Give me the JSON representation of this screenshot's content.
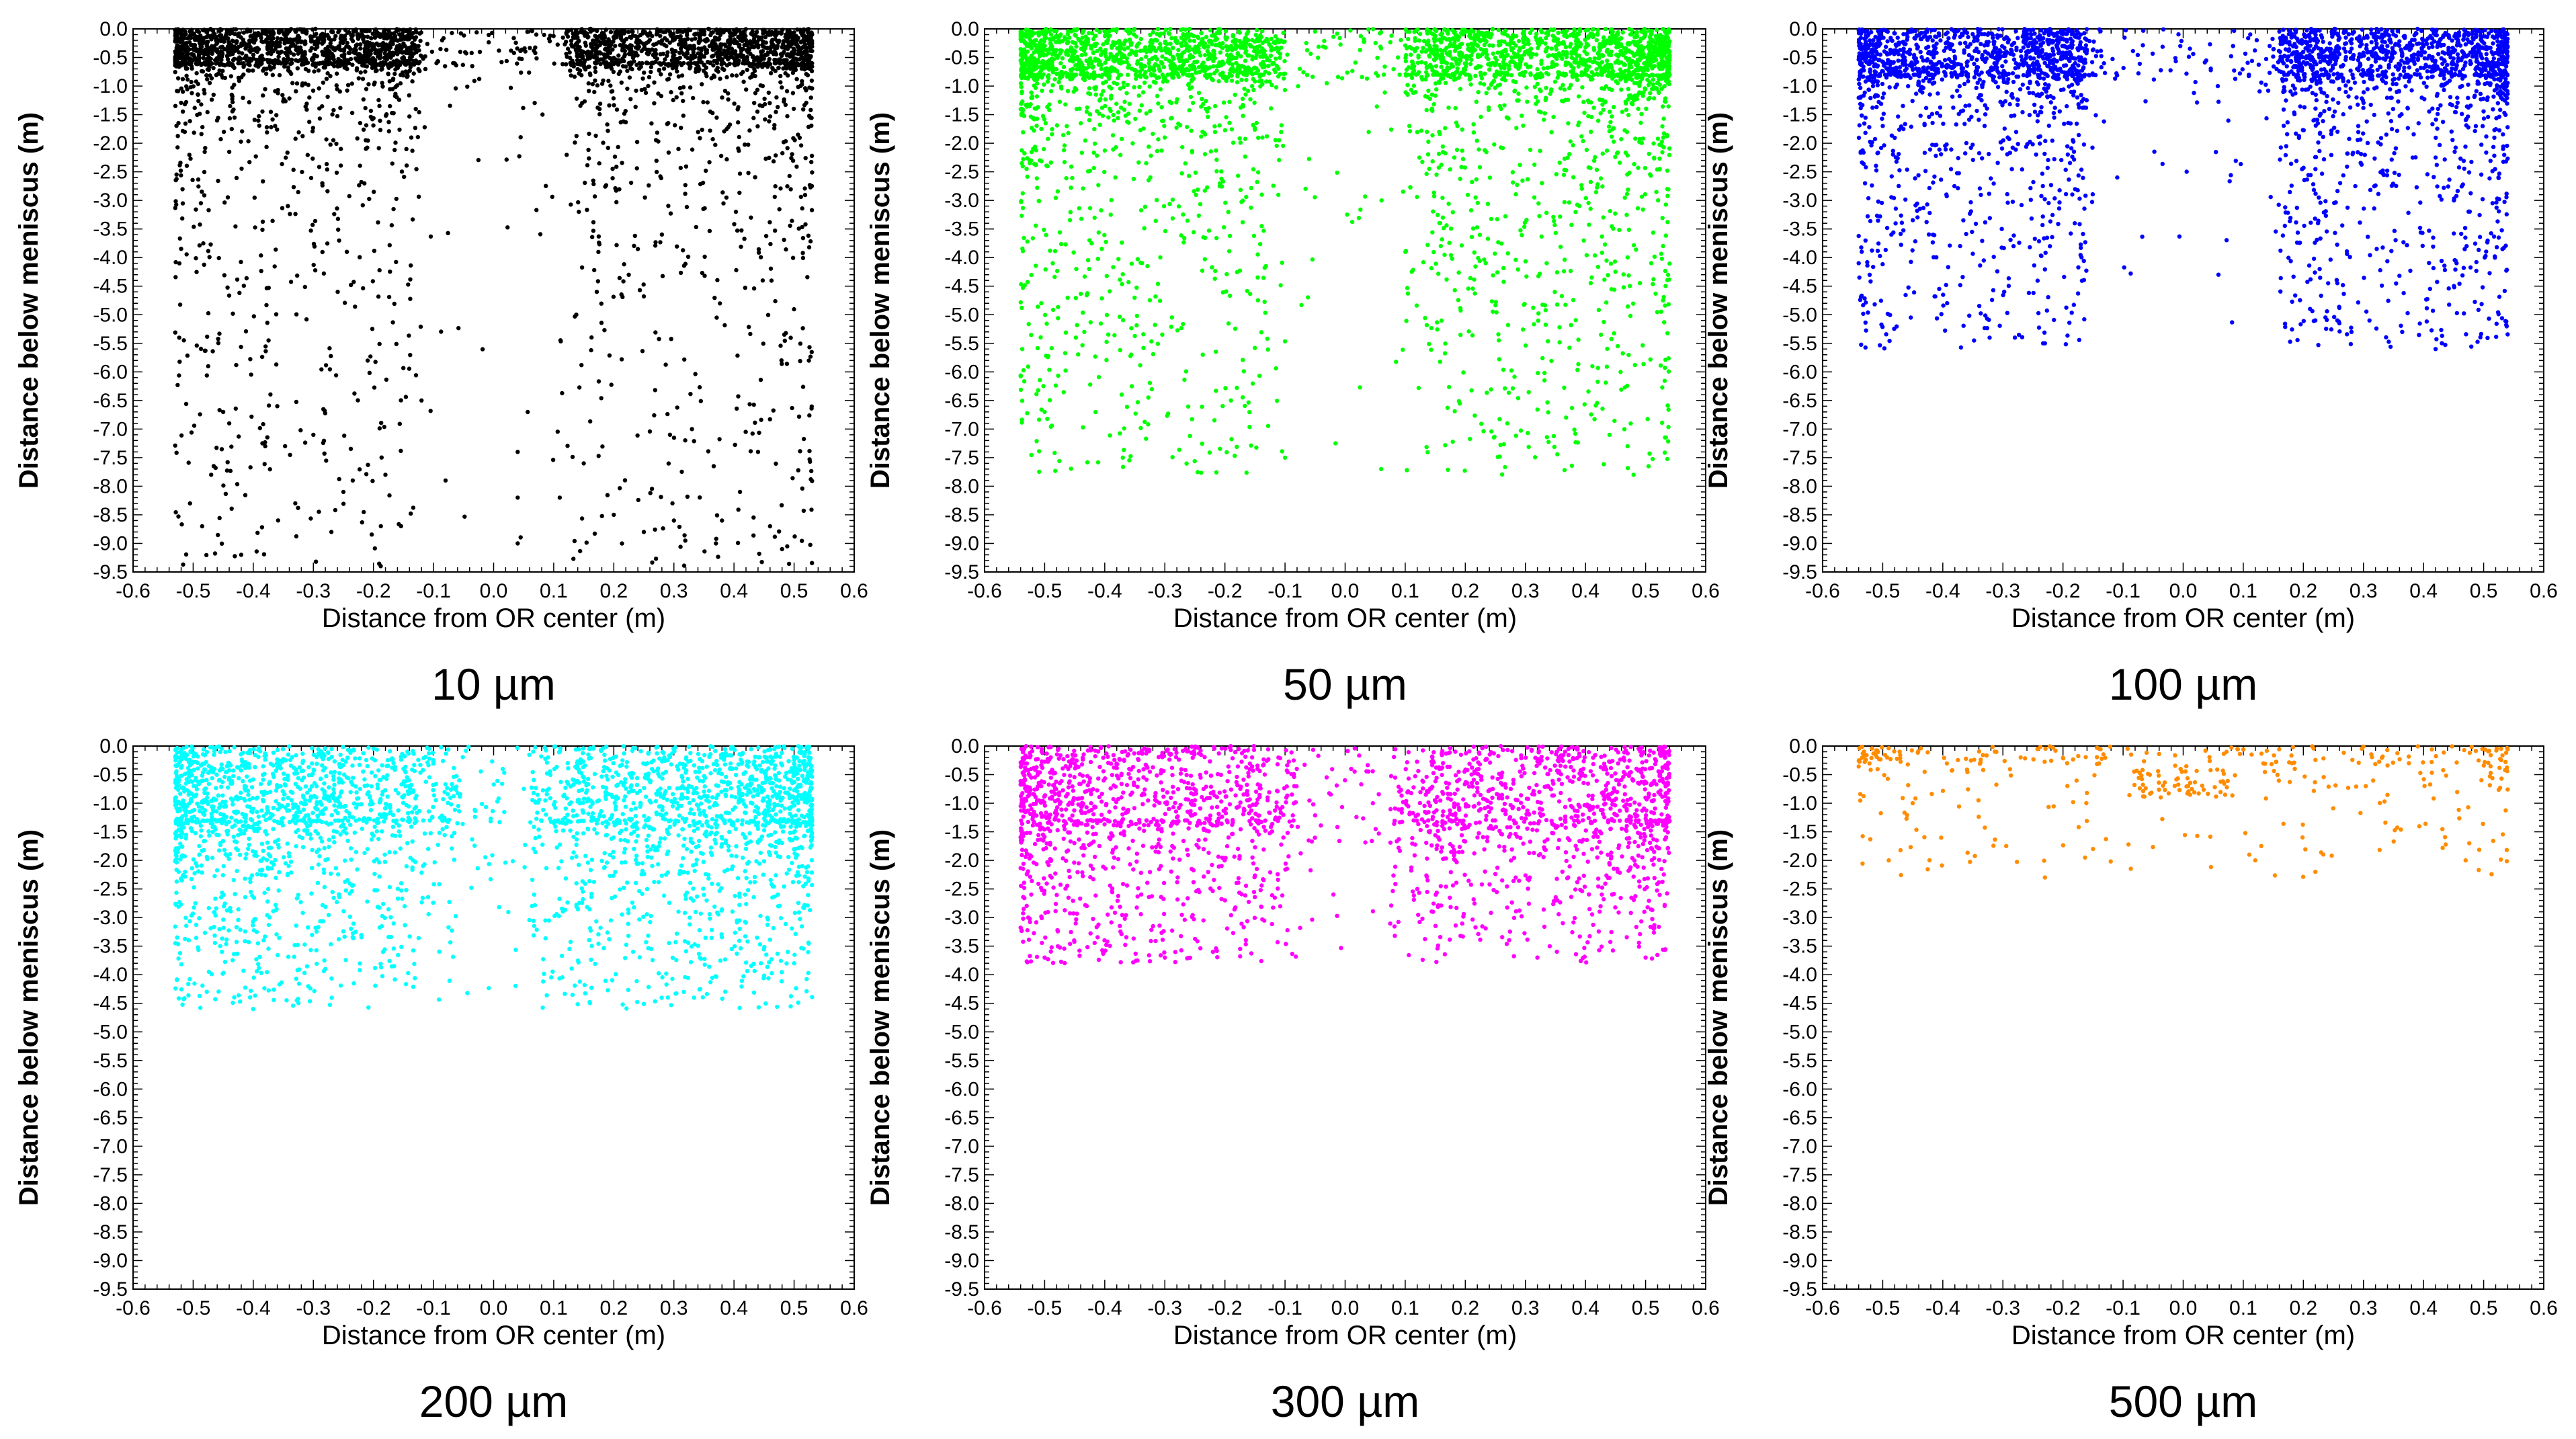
{
  "chart_data": [
    {
      "type": "scatter",
      "caption": "10 µm",
      "color": "#000000",
      "xlabel": "Distance from OR center (m)",
      "ylabel": "Distance below meniscus (m)",
      "xlim": [
        -0.6,
        0.6
      ],
      "ylim": [
        -9.5,
        0.0
      ],
      "xticks": [
        "-0.6",
        "-0.5",
        "-0.4",
        "-0.3",
        "-0.2",
        "-0.1",
        "0.0",
        "0.1",
        "0.2",
        "0.3",
        "0.4",
        "0.5",
        "0.6"
      ],
      "yticks": [
        "0.0",
        "-0.5",
        "-1.0",
        "-1.5",
        "-2.0",
        "-2.5",
        "-3.0",
        "-3.5",
        "-4.0",
        "-4.5",
        "-5.0",
        "-5.5",
        "-6.0",
        "-6.5",
        "-7.0",
        "-7.5",
        "-8.0",
        "-8.5",
        "-9.0",
        "-9.5"
      ],
      "distribution": {
        "x_range": [
          -0.53,
          0.53
        ],
        "count": 3400,
        "dense_depth": 0.6,
        "max_depth": 9.4,
        "tail": 2.0,
        "center_gap": 0.12
      },
      "points": [
        [
          -0.45,
          -6.7
        ],
        [
          -0.47,
          -7.8
        ],
        [
          -0.44,
          -6.9
        ],
        [
          -0.42,
          -9.2
        ],
        [
          -0.38,
          -7.3
        ],
        [
          -0.36,
          -6.6
        ],
        [
          -0.33,
          -8.3
        ],
        [
          -0.3,
          -7.1
        ],
        [
          -0.27,
          -8.8
        ],
        [
          -0.25,
          -8.1
        ],
        [
          -0.18,
          -7.8
        ],
        [
          -0.12,
          -6.5
        ],
        [
          -0.08,
          -7.9
        ],
        [
          0.04,
          -7.4
        ],
        [
          0.04,
          -8.2
        ],
        [
          0.04,
          -9.0
        ],
        [
          0.11,
          -8.2
        ],
        [
          0.15,
          -7.6
        ],
        [
          0.2,
          -8.5
        ],
        [
          0.25,
          -8.8
        ],
        [
          0.3,
          -8.6
        ],
        [
          0.33,
          -7.0
        ],
        [
          0.37,
          -9.0
        ],
        [
          0.38,
          -8.6
        ],
        [
          0.41,
          -8.1
        ],
        [
          0.44,
          -7.4
        ],
        [
          0.46,
          -8.7
        ],
        [
          0.48,
          -9.1
        ]
      ]
    },
    {
      "type": "scatter",
      "caption": "50 µm",
      "color": "#00ff00",
      "xlabel": "Distance from OR center (m)",
      "ylabel": "Distance below meniscus (m)",
      "xlim": [
        -0.6,
        0.6
      ],
      "ylim": [
        -9.5,
        0.0
      ],
      "xticks": [
        "-0.6",
        "-0.5",
        "-0.4",
        "-0.3",
        "-0.2",
        "-0.1",
        "0.0",
        "0.1",
        "0.2",
        "0.3",
        "0.4",
        "0.5",
        "0.6"
      ],
      "yticks": [
        "0.0",
        "-0.5",
        "-1.0",
        "-1.5",
        "-2.0",
        "-2.5",
        "-3.0",
        "-3.5",
        "-4.0",
        "-4.5",
        "-5.0",
        "-5.5",
        "-6.0",
        "-6.5",
        "-7.0",
        "-7.5",
        "-8.0",
        "-8.5",
        "-9.0",
        "-9.5"
      ],
      "distribution": {
        "x_range": [
          -0.54,
          0.54
        ],
        "count": 3600,
        "dense_depth": 0.8,
        "max_depth": 7.8,
        "tail": 1.5,
        "center_gap": 0.1
      },
      "points": [
        [
          -0.5,
          -6.7
        ],
        [
          -0.37,
          -7.5
        ],
        [
          -0.1,
          -7.5
        ],
        [
          0.06,
          -7.7
        ],
        [
          0.44,
          -7.1
        ],
        [
          0.47,
          -7.3
        ],
        [
          0.48,
          -7.8
        ],
        [
          0.27,
          -6.9
        ],
        [
          -0.19,
          -6.5
        ]
      ]
    },
    {
      "type": "scatter",
      "caption": "100 µm",
      "color": "#0000ff",
      "xlabel": "Distance from OR center (m)",
      "ylabel": "Distance below meniscus (m)",
      "xlim": [
        -0.6,
        0.6
      ],
      "ylim": [
        -9.5,
        0.0
      ],
      "xticks": [
        "-0.6",
        "-0.5",
        "-0.4",
        "-0.3",
        "-0.2",
        "-0.1",
        "0.0",
        "0.1",
        "0.2",
        "0.3",
        "0.4",
        "0.5",
        "0.6"
      ],
      "yticks": [
        "0.0",
        "-0.5",
        "-1.0",
        "-1.5",
        "-2.0",
        "-2.5",
        "-3.0",
        "-3.5",
        "-4.0",
        "-4.5",
        "-5.0",
        "-5.5",
        "-6.0",
        "-6.5",
        "-7.0",
        "-7.5",
        "-8.0",
        "-8.5",
        "-9.0",
        "-9.5"
      ],
      "distribution": {
        "x_range": [
          -0.54,
          0.54
        ],
        "count": 3000,
        "dense_depth": 0.8,
        "max_depth": 5.6,
        "tail": 1.2,
        "center_gap": 0.16
      },
      "points": [
        [
          -0.28,
          -5.4
        ],
        [
          -0.23,
          -5.5
        ],
        [
          0.42,
          -5.6
        ],
        [
          0.28,
          -5.3
        ],
        [
          0.31,
          -5.1
        ]
      ]
    },
    {
      "type": "scatter",
      "caption": "200 µm",
      "color": "#00ffff",
      "xlabel": "Distance from OR center (m)",
      "ylabel": "Distance below meniscus (m)",
      "xlim": [
        -0.6,
        0.6
      ],
      "ylim": [
        -9.5,
        0.0
      ],
      "xticks": [
        "-0.6",
        "-0.5",
        "-0.4",
        "-0.3",
        "-0.2",
        "-0.1",
        "0.0",
        "0.1",
        "0.2",
        "0.3",
        "0.4",
        "0.5",
        "0.6"
      ],
      "yticks": [
        "0.0",
        "-0.5",
        "-1.0",
        "-1.5",
        "-2.0",
        "-2.5",
        "-3.0",
        "-3.5",
        "-4.0",
        "-4.5",
        "-5.0",
        "-5.5",
        "-6.0",
        "-6.5",
        "-7.0",
        "-7.5",
        "-8.0",
        "-8.5",
        "-9.0",
        "-9.5"
      ],
      "distribution": {
        "x_range": [
          -0.53,
          0.53
        ],
        "count": 3000,
        "dense_depth": 1.3,
        "max_depth": 4.6,
        "tail": 0.9,
        "center_gap": 0.06
      },
      "points": [
        [
          -0.4,
          -4.6
        ],
        [
          0.29,
          -4.4
        ],
        [
          -0.28,
          -3.9
        ],
        [
          0.5,
          -3.8
        ]
      ]
    },
    {
      "type": "scatter",
      "caption": "300 µm",
      "color": "#ff00ff",
      "xlabel": "Distance from OR center (m)",
      "ylabel": "Distance below meniscus (m)",
      "xlim": [
        -0.6,
        0.6
      ],
      "ylim": [
        -9.5,
        0.0
      ],
      "xticks": [
        "-0.6",
        "-0.5",
        "-0.4",
        "-0.3",
        "-0.2",
        "-0.1",
        "0.0",
        "0.1",
        "0.2",
        "0.3",
        "0.4",
        "0.5",
        "0.6"
      ],
      "yticks": [
        "0.0",
        "-0.5",
        "-1.0",
        "-1.5",
        "-2.0",
        "-2.5",
        "-3.0",
        "-3.5",
        "-4.0",
        "-4.5",
        "-5.0",
        "-5.5",
        "-6.0",
        "-6.5",
        "-7.0",
        "-7.5",
        "-8.0",
        "-8.5",
        "-9.0",
        "-9.5"
      ],
      "distribution": {
        "x_range": [
          -0.54,
          0.54
        ],
        "count": 2300,
        "dense_depth": 1.3,
        "max_depth": 3.8,
        "tail": 0.9,
        "center_gap": 0.08
      },
      "points": [
        [
          -0.5,
          -3.7
        ],
        [
          -0.3,
          -3.7
        ],
        [
          0.32,
          -3.7
        ],
        [
          0.5,
          -3.7
        ],
        [
          -0.22,
          -3.6
        ]
      ]
    },
    {
      "type": "scatter",
      "caption": "500 µm",
      "color": "#ff8c00",
      "xlabel": "Distance from OR center (m)",
      "ylabel": "Distance below meniscus (m)",
      "xlim": [
        -0.6,
        0.6
      ],
      "ylim": [
        -9.5,
        0.0
      ],
      "xticks": [
        "-0.6",
        "-0.5",
        "-0.4",
        "-0.3",
        "-0.2",
        "-0.1",
        "0.0",
        "0.1",
        "0.2",
        "0.3",
        "0.4",
        "0.5",
        "0.6"
      ],
      "yticks": [
        "0.0",
        "-0.5",
        "-1.0",
        "-1.5",
        "-2.0",
        "-2.5",
        "-3.0",
        "-3.5",
        "-4.0",
        "-4.5",
        "-5.0",
        "-5.5",
        "-6.0",
        "-6.5",
        "-7.0",
        "-7.5",
        "-8.0",
        "-8.5",
        "-9.0",
        "-9.5"
      ],
      "distribution": {
        "x_range": [
          -0.54,
          0.54
        ],
        "count": 330,
        "dense_depth": 0.3,
        "max_depth": 2.3,
        "tail": 0.5,
        "center_gap": 0.0,
        "cluster": [
          0.0,
          -0.65
        ]
      },
      "points": [
        [
          -0.23,
          -2.3
        ],
        [
          -0.49,
          -2.0
        ],
        [
          0.47,
          -2.0
        ],
        [
          0.22,
          -2.2
        ],
        [
          0.12,
          -2.0
        ],
        [
          0.11,
          -1.9
        ],
        [
          0.13,
          -1.75
        ],
        [
          -0.15,
          -1.8
        ]
      ]
    }
  ]
}
